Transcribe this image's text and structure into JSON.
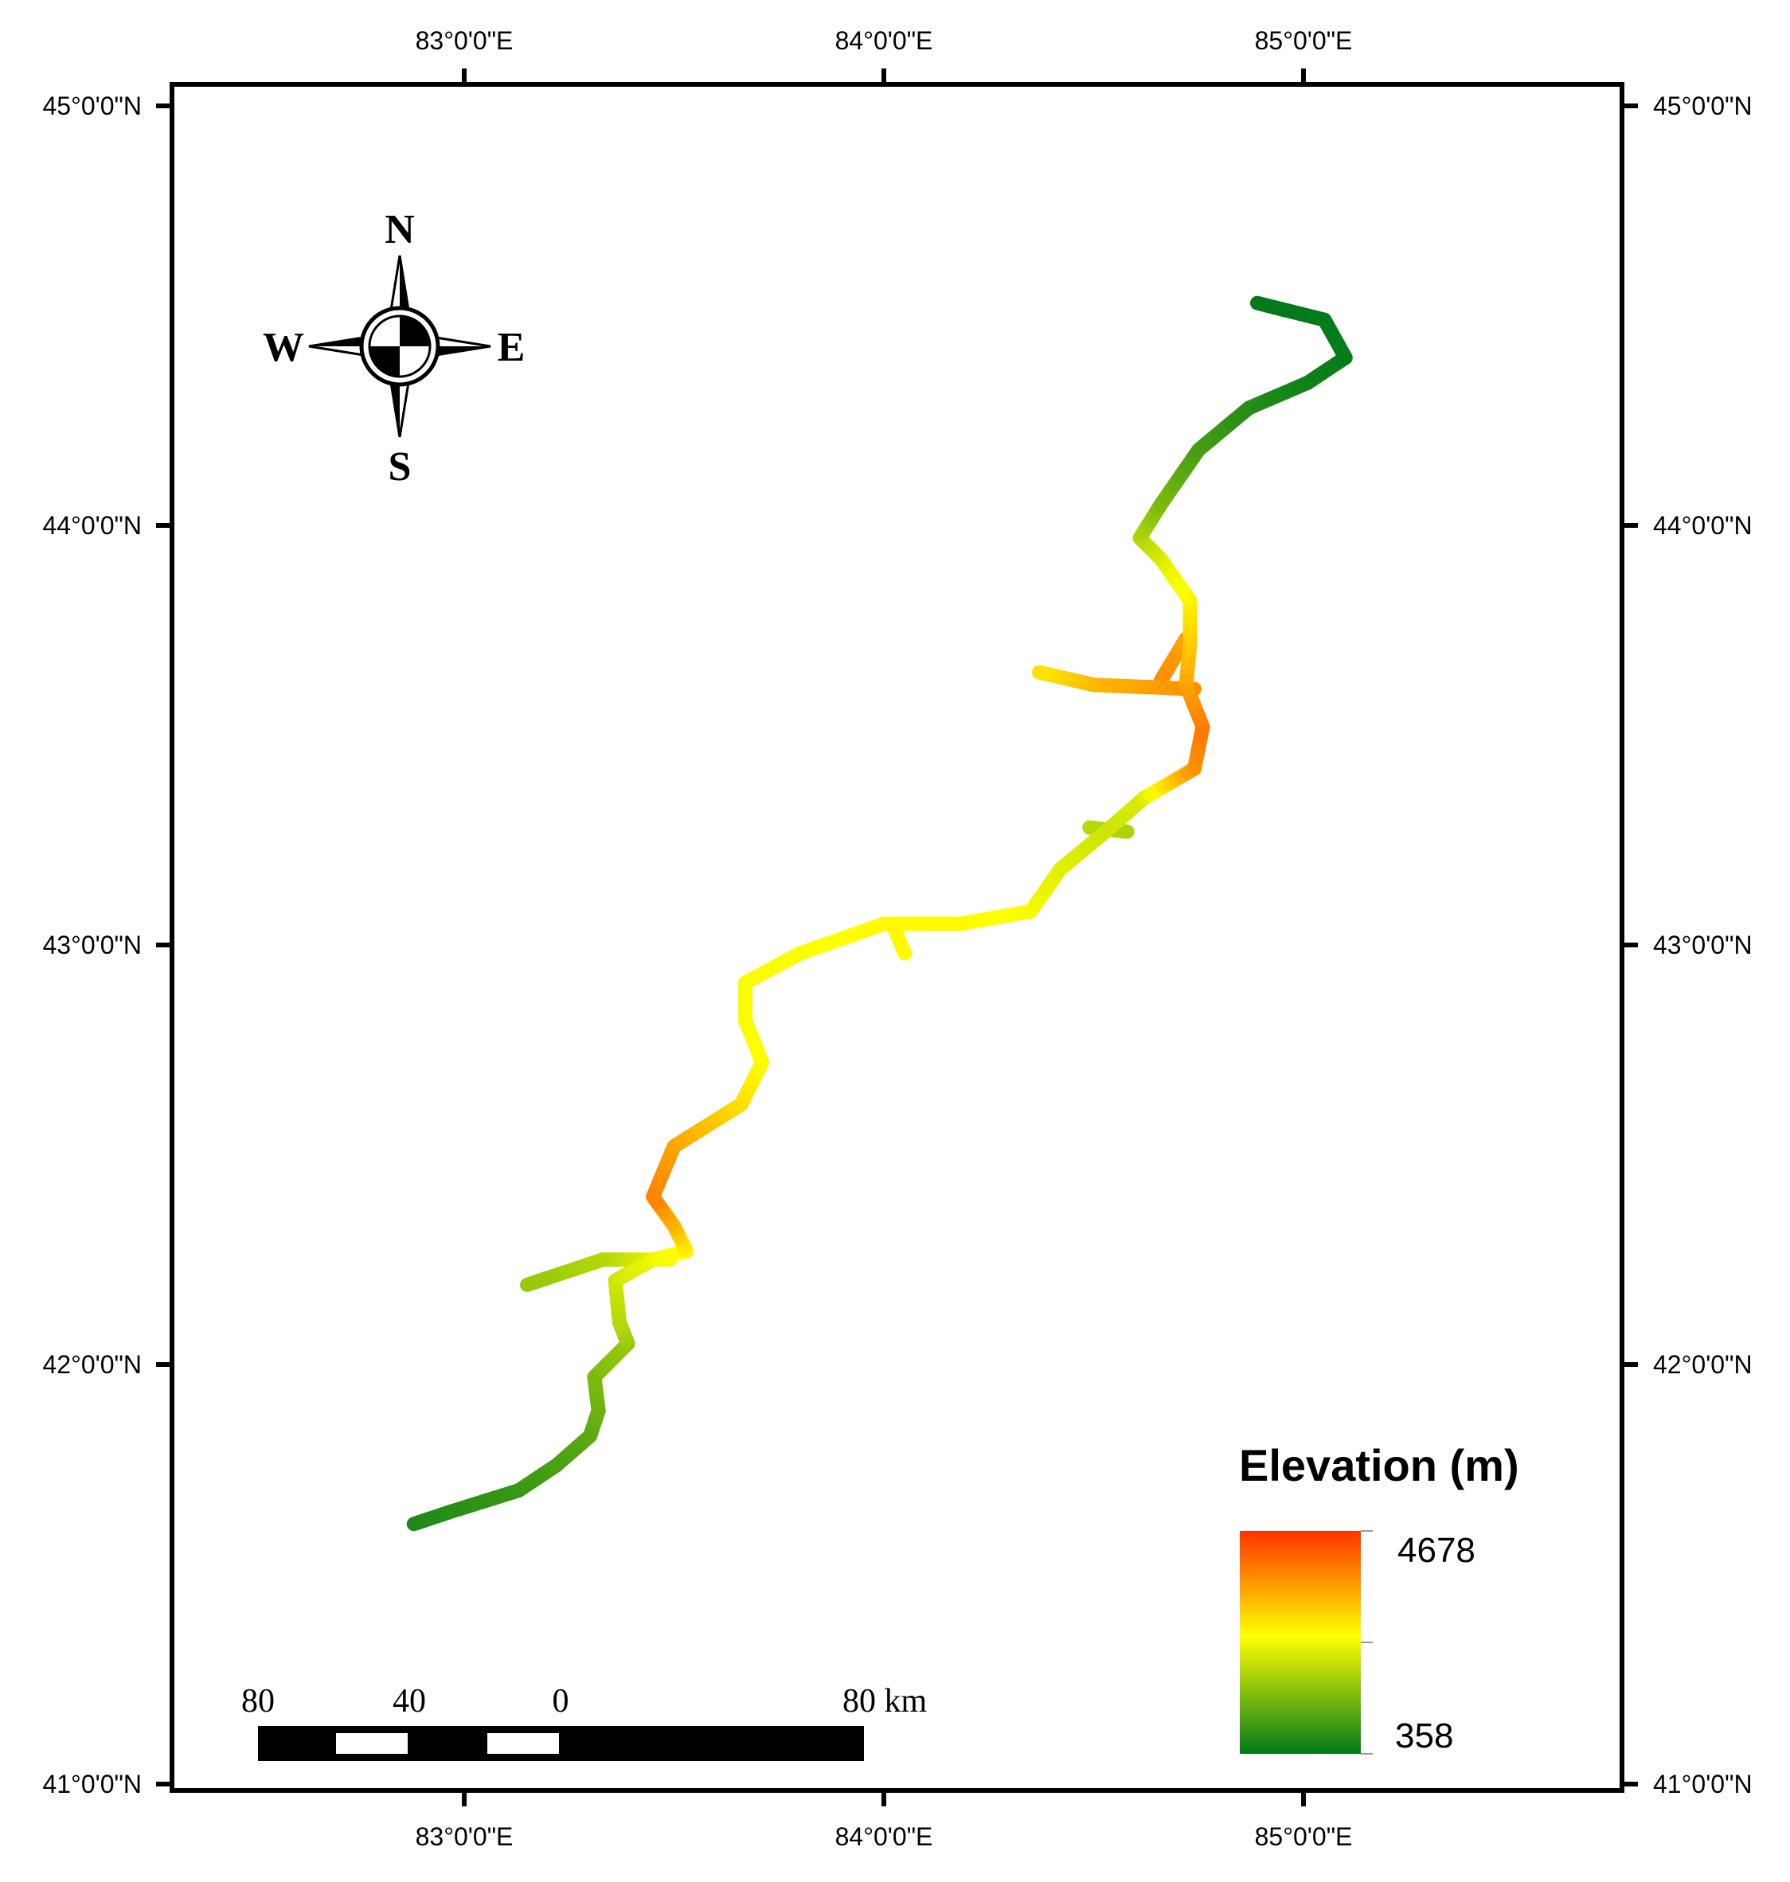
{
  "map": {
    "longitude_ticks": [
      {
        "lon": 83,
        "label": "83°0'0\"E"
      },
      {
        "lon": 84,
        "label": "84°0'0\"E"
      },
      {
        "lon": 85,
        "label": "85°0'0\"E"
      }
    ],
    "latitude_ticks": [
      {
        "lat": 45,
        "label": "45°0'0\"N"
      },
      {
        "lat": 44,
        "label": "44°0'0\"N"
      },
      {
        "lat": 43,
        "label": "43°0'0\"N"
      },
      {
        "lat": 42,
        "label": "42°0'0\"N"
      },
      {
        "lat": 41,
        "label": "41°0'0\"N"
      }
    ],
    "compass": {
      "north": "N",
      "south": "S",
      "east": "E",
      "west": "W"
    },
    "legend": {
      "title": "Elevation (m)",
      "max_label": "4678",
      "min_label": "358",
      "colors": {
        "high": "#ff3300",
        "mid": "#ffff00",
        "low": "#007a1a"
      }
    },
    "scale_bar": {
      "labels": [
        "80",
        "40",
        "0",
        "80 km"
      ]
    },
    "track": {
      "route": [
        {
          "lon": 82.88,
          "lat": 41.62,
          "elev": 600
        },
        {
          "lon": 82.97,
          "lat": 41.65,
          "elev": 700
        },
        {
          "lon": 83.13,
          "lat": 41.7,
          "elev": 850
        },
        {
          "lon": 83.22,
          "lat": 41.76,
          "elev": 1000
        },
        {
          "lon": 83.3,
          "lat": 41.83,
          "elev": 1150
        },
        {
          "lon": 83.32,
          "lat": 41.89,
          "elev": 1300
        },
        {
          "lon": 83.31,
          "lat": 41.97,
          "elev": 1450
        },
        {
          "lon": 83.39,
          "lat": 42.05,
          "elev": 1700
        },
        {
          "lon": 83.37,
          "lat": 42.1,
          "elev": 1950
        },
        {
          "lon": 83.36,
          "lat": 42.2,
          "elev": 2200
        },
        {
          "lon": 83.45,
          "lat": 42.25,
          "elev": 2500
        },
        {
          "lon": 83.53,
          "lat": 42.27,
          "elev": 2700
        },
        {
          "lon": 83.5,
          "lat": 42.33,
          "elev": 3300
        },
        {
          "lon": 83.45,
          "lat": 42.4,
          "elev": 3900
        },
        {
          "lon": 83.5,
          "lat": 42.52,
          "elev": 3600
        },
        {
          "lon": 83.66,
          "lat": 42.62,
          "elev": 3000
        },
        {
          "lon": 83.71,
          "lat": 42.72,
          "elev": 2700
        },
        {
          "lon": 83.67,
          "lat": 42.82,
          "elev": 2600
        },
        {
          "lon": 83.67,
          "lat": 42.91,
          "elev": 2600
        },
        {
          "lon": 83.8,
          "lat": 42.98,
          "elev": 2600
        },
        {
          "lon": 84.0,
          "lat": 43.05,
          "elev": 2700
        },
        {
          "lon": 84.18,
          "lat": 43.05,
          "elev": 2700
        },
        {
          "lon": 84.35,
          "lat": 43.08,
          "elev": 2600
        },
        {
          "lon": 84.42,
          "lat": 43.18,
          "elev": 2400
        },
        {
          "lon": 84.54,
          "lat": 43.28,
          "elev": 2200
        },
        {
          "lon": 84.62,
          "lat": 43.35,
          "elev": 2300
        },
        {
          "lon": 84.74,
          "lat": 43.42,
          "elev": 3700
        },
        {
          "lon": 84.76,
          "lat": 43.52,
          "elev": 4000
        },
        {
          "lon": 84.72,
          "lat": 43.62,
          "elev": 3600
        },
        {
          "lon": 84.73,
          "lat": 43.72,
          "elev": 3200
        },
        {
          "lon": 84.73,
          "lat": 43.82,
          "elev": 2800
        },
        {
          "lon": 84.66,
          "lat": 43.92,
          "elev": 2400
        },
        {
          "lon": 84.61,
          "lat": 43.97,
          "elev": 2000
        },
        {
          "lon": 84.66,
          "lat": 44.05,
          "elev": 1500
        },
        {
          "lon": 84.75,
          "lat": 44.18,
          "elev": 1000
        },
        {
          "lon": 84.87,
          "lat": 44.28,
          "elev": 700
        },
        {
          "lon": 85.01,
          "lat": 44.34,
          "elev": 500
        },
        {
          "lon": 85.1,
          "lat": 44.4,
          "elev": 420
        },
        {
          "lon": 85.05,
          "lat": 44.49,
          "elev": 380
        },
        {
          "lon": 84.89,
          "lat": 44.53,
          "elev": 358
        }
      ],
      "branches": [
        [
          {
            "lon": 83.49,
            "lat": 42.25,
            "elev": 2600
          },
          {
            "lon": 83.4,
            "lat": 42.25,
            "elev": 2300
          },
          {
            "lon": 83.33,
            "lat": 42.25,
            "elev": 2000
          },
          {
            "lon": 83.15,
            "lat": 42.19,
            "elev": 1700
          }
        ],
        [
          {
            "lon": 84.66,
            "lat": 43.63,
            "elev": 3800
          },
          {
            "lon": 84.72,
            "lat": 43.73,
            "elev": 3600
          }
        ],
        [
          {
            "lon": 84.74,
            "lat": 43.61,
            "elev": 3800
          },
          {
            "lon": 84.5,
            "lat": 43.62,
            "elev": 3400
          },
          {
            "lon": 84.37,
            "lat": 43.65,
            "elev": 2900
          }
        ],
        [
          {
            "lon": 84.02,
            "lat": 43.05,
            "elev": 2700
          },
          {
            "lon": 84.05,
            "lat": 42.98,
            "elev": 2700
          }
        ],
        [
          {
            "lon": 84.49,
            "lat": 43.28,
            "elev": 2000
          },
          {
            "lon": 84.58,
            "lat": 43.27,
            "elev": 1900
          }
        ]
      ]
    }
  }
}
